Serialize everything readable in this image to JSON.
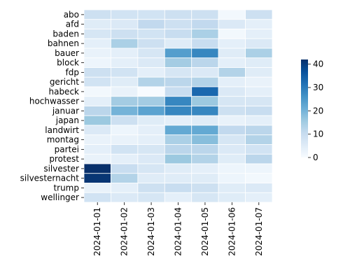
{
  "chart_data": {
    "type": "heatmap",
    "title": "",
    "xlabel": "",
    "ylabel": "",
    "x_labels": [
      "2024-01-01",
      "2024-01-02",
      "2024-01-03",
      "2024-01-04",
      "2024-01-05",
      "2024-01-06",
      "2024-01-07"
    ],
    "y_labels": [
      "abo",
      "afd",
      "baden",
      "bahnen",
      "bauer",
      "block",
      "fdp",
      "gericht",
      "habeck",
      "hochwasser",
      "januar",
      "japan",
      "landwirt",
      "montag",
      "partei",
      "protest",
      "silvester",
      "silvesternacht",
      "trump",
      "wellinger"
    ],
    "values": [
      [
        9,
        8,
        8,
        9,
        9,
        1,
        9
      ],
      [
        5,
        6,
        11,
        9,
        11,
        6,
        4
      ],
      [
        7,
        9,
        8,
        10,
        14,
        1,
        4
      ],
      [
        4,
        14,
        9,
        5,
        10,
        4,
        6
      ],
      [
        3,
        4,
        7,
        24,
        28,
        5,
        14
      ],
      [
        2,
        4,
        6,
        15,
        12,
        4,
        5
      ],
      [
        9,
        8,
        4,
        7,
        6,
        13,
        5
      ],
      [
        8,
        5,
        13,
        12,
        13,
        4,
        3
      ],
      [
        1,
        3,
        0,
        10,
        33,
        6,
        4
      ],
      [
        4,
        15,
        15,
        28,
        16,
        7,
        7
      ],
      [
        12,
        20,
        23,
        28,
        28,
        9,
        10
      ],
      [
        16,
        9,
        5,
        4,
        5,
        3,
        4
      ],
      [
        6,
        2,
        4,
        22,
        22,
        11,
        12
      ],
      [
        3,
        3,
        4,
        14,
        18,
        7,
        13
      ],
      [
        4,
        8,
        7,
        12,
        12,
        6,
        8
      ],
      [
        3,
        4,
        6,
        16,
        13,
        5,
        12
      ],
      [
        42,
        10,
        7,
        5,
        4,
        2,
        2
      ],
      [
        41,
        13,
        5,
        5,
        5,
        2,
        1
      ],
      [
        3,
        4,
        9,
        10,
        9,
        5,
        6
      ],
      [
        8,
        6,
        7,
        4,
        7,
        5,
        4
      ]
    ],
    "vmin": 0,
    "vmax": 42,
    "colorbar_ticks": [
      0,
      10,
      20,
      30,
      40
    ],
    "colormap": "Blues",
    "colormap_stops": [
      "#f7fbff",
      "#deebf7",
      "#c6dbef",
      "#9ecae1",
      "#6baed6",
      "#4292c6",
      "#2171b5",
      "#08519c",
      "#08306b"
    ],
    "grid": false
  }
}
